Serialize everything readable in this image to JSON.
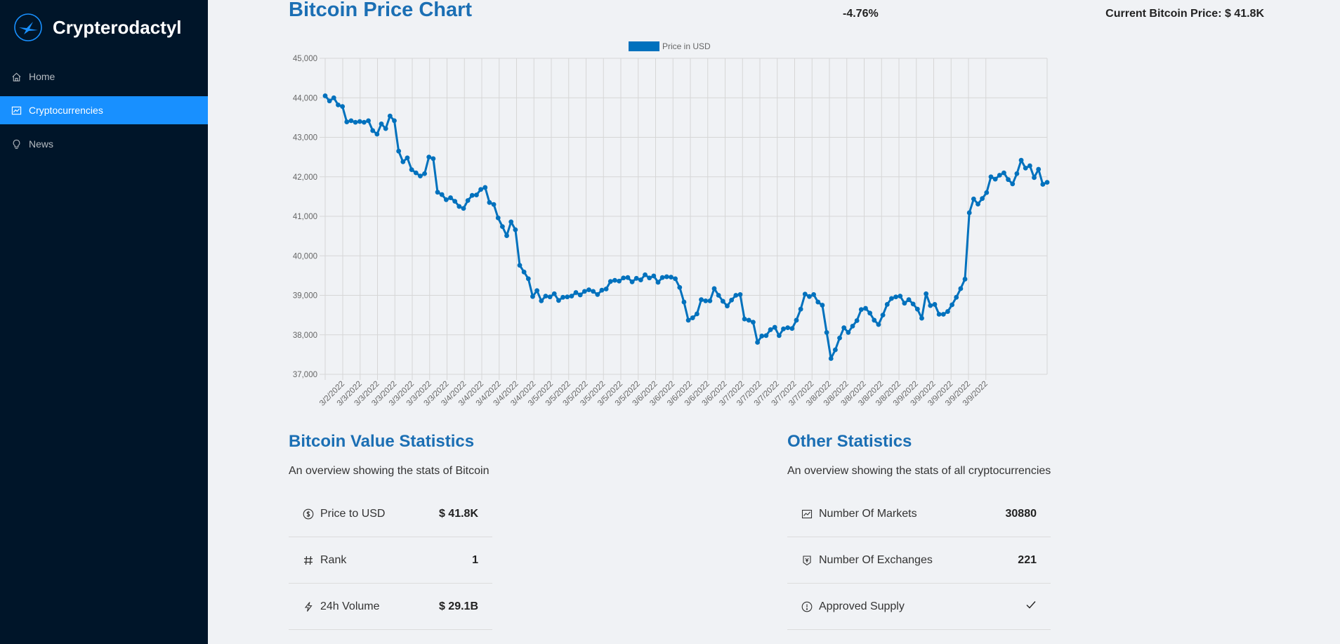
{
  "app": {
    "name": "Crypterodactyl"
  },
  "sidebar": {
    "items": [
      {
        "label": "Home",
        "icon": "home-icon",
        "active": false
      },
      {
        "label": "Cryptocurrencies",
        "icon": "fund-icon",
        "active": true
      },
      {
        "label": "News",
        "icon": "bulb-icon",
        "active": false
      }
    ]
  },
  "header": {
    "title": "Bitcoin Price Chart",
    "change": "-4.76%",
    "current_price": "Current Bitcoin Price: $ 41.8K"
  },
  "colors": {
    "sidebar": "#001529",
    "accent": "#1890ff",
    "line": "#0071bd",
    "title": "#1b6fb4"
  },
  "chart_data": {
    "type": "line",
    "series": [
      {
        "name": "Price in USD"
      }
    ],
    "ylim": [
      37000,
      45000
    ],
    "y_ticks": [
      "45,000",
      "44,000",
      "43,000",
      "42,000",
      "41,000",
      "40,000",
      "39,000",
      "38,000",
      "37,000"
    ],
    "x_tick_labels": [
      "3/2/2022",
      "3/3/2022",
      "3/3/2022",
      "3/3/2022",
      "3/3/2022",
      "3/3/2022",
      "3/3/2022",
      "3/4/2022",
      "3/4/2022",
      "3/4/2022",
      "3/4/2022",
      "3/4/2022",
      "3/5/2022",
      "3/5/2022",
      "3/5/2022",
      "3/5/2022",
      "3/5/2022",
      "3/5/2022",
      "3/6/2022",
      "3/6/2022",
      "3/6/2022",
      "3/6/2022",
      "3/6/2022",
      "3/7/2022",
      "3/7/2022",
      "3/7/2022",
      "3/7/2022",
      "3/7/2022",
      "3/8/2022",
      "3/8/2022",
      "3/8/2022",
      "3/8/2022",
      "3/8/2022",
      "3/9/2022",
      "3/9/2022",
      "3/9/2022",
      "3/9/2022",
      "3/9/2022"
    ],
    "values": [
      44050,
      43920,
      44000,
      43820,
      43780,
      43390,
      43420,
      43380,
      43400,
      43380,
      43420,
      43170,
      43080,
      43340,
      43220,
      43540,
      43420,
      42650,
      42380,
      42480,
      42180,
      42100,
      42020,
      42080,
      42500,
      42460,
      41610,
      41550,
      41420,
      41470,
      41380,
      41250,
      41200,
      41400,
      41530,
      41540,
      41680,
      41730,
      41350,
      41300,
      40960,
      40740,
      40510,
      40860,
      40660,
      39760,
      39590,
      39420,
      38970,
      39120,
      38860,
      38980,
      38960,
      39040,
      38870,
      38950,
      38960,
      38980,
      39070,
      39010,
      39100,
      39140,
      39100,
      39020,
      39130,
      39160,
      39350,
      39380,
      39360,
      39440,
      39450,
      39340,
      39430,
      39390,
      39520,
      39440,
      39490,
      39330,
      39450,
      39470,
      39460,
      39420,
      39200,
      38830,
      38370,
      38430,
      38530,
      38890,
      38860,
      38860,
      39170,
      39000,
      38850,
      38730,
      38880,
      39000,
      39020,
      38400,
      38370,
      38320,
      37810,
      37970,
      37980,
      38130,
      38190,
      37980,
      38150,
      38180,
      38160,
      38370,
      38650,
      39030,
      38970,
      39020,
      38830,
      38750,
      38060,
      37400,
      37620,
      37920,
      38180,
      38060,
      38220,
      38360,
      38640,
      38670,
      38550,
      38370,
      38260,
      38500,
      38770,
      38920,
      38960,
      38980,
      38800,
      38890,
      38780,
      38650,
      38420,
      39040,
      38740,
      38770,
      38520,
      38520,
      38590,
      38760,
      38950,
      39170,
      39410,
      41090,
      41440,
      41310,
      41450,
      41600,
      42000,
      41940,
      42040,
      42100,
      41930,
      41820,
      42080,
      42420,
      42220,
      42280,
      41980,
      42190,
      41810,
      41860
    ]
  },
  "bitcoin_stats": {
    "title": "Bitcoin Value Statistics",
    "subtitle": "An overview showing the stats of Bitcoin",
    "rows": [
      {
        "label": "Price to USD",
        "value": "$ 41.8K",
        "icon": "dollar-circle-icon"
      },
      {
        "label": "Rank",
        "value": "1",
        "icon": "number-icon"
      },
      {
        "label": "24h Volume",
        "value": "$ 29.1B",
        "icon": "thunderbolt-icon"
      }
    ]
  },
  "other_stats": {
    "title": "Other Statistics",
    "subtitle": "An overview showing the stats of all cryptocurrencies",
    "rows": [
      {
        "label": "Number Of Markets",
        "value": "30880",
        "icon": "fund-icon"
      },
      {
        "label": "Number Of Exchanges",
        "value": "221",
        "icon": "money-collect-icon"
      },
      {
        "label": "Approved Supply",
        "value": "",
        "icon": "exclamation-circle-icon",
        "value_icon": "check-icon"
      }
    ]
  }
}
